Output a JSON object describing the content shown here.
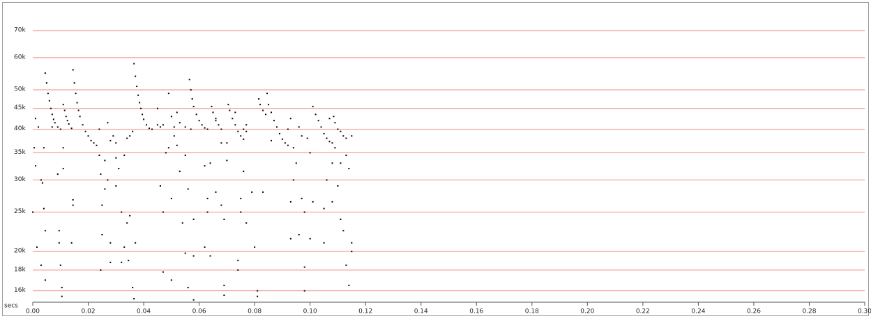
{
  "chart_data": {
    "type": "scatter",
    "xlabel": "secs",
    "color": "#000000",
    "grid_color": "#f08a8a",
    "grid": true,
    "ylog": true,
    "xlim": [
      0,
      0.3
    ],
    "ylim": [
      15000,
      80000
    ],
    "xticks": [
      {
        "value": 0,
        "label": "0.00"
      },
      {
        "value": 0.02,
        "label": "0.02"
      },
      {
        "value": 0.04,
        "label": "0.04"
      },
      {
        "value": 0.06,
        "label": "0.06"
      },
      {
        "value": 0.08,
        "label": "0.08"
      },
      {
        "value": 0.1,
        "label": "0.10"
      },
      {
        "value": 0.12,
        "label": "0.12"
      },
      {
        "value": 0.14,
        "label": "0.14"
      },
      {
        "value": 0.16,
        "label": "0.16"
      },
      {
        "value": 0.18,
        "label": "0.18"
      },
      {
        "value": 0.2,
        "label": "0.20"
      },
      {
        "value": 0.22,
        "label": "0.22"
      },
      {
        "value": 0.24,
        "label": "0.24"
      },
      {
        "value": 0.26,
        "label": "0.26"
      },
      {
        "value": 0.28,
        "label": "0.28"
      },
      {
        "value": 0.3,
        "label": "0.30"
      }
    ],
    "yticks": [
      {
        "value": 16000,
        "label": "16k"
      },
      {
        "value": 18000,
        "label": "18k"
      },
      {
        "value": 20000,
        "label": "20k"
      },
      {
        "value": 25000,
        "label": "25k"
      },
      {
        "value": 30000,
        "label": "30k"
      },
      {
        "value": 35000,
        "label": "35k"
      },
      {
        "value": 40000,
        "label": "40k"
      },
      {
        "value": 45000,
        "label": "45k"
      },
      {
        "value": 50000,
        "label": "50k"
      },
      {
        "value": 60000,
        "label": "60k"
      },
      {
        "value": 70000,
        "label": "70k"
      }
    ],
    "x": [
      0.0045,
      0.005,
      0.0055,
      0.006,
      0.0065,
      0.007,
      0.0075,
      0.008,
      0.009,
      0.01,
      0.011,
      0.0115,
      0.012,
      0.0125,
      0.013,
      0.014,
      0.0145,
      0.015,
      0.0155,
      0.016,
      0.0165,
      0.017,
      0.018,
      0.019,
      0.02,
      0.021,
      0.022,
      0.023,
      0.0365,
      0.037,
      0.0375,
      0.038,
      0.0385,
      0.039,
      0.0395,
      0.04,
      0.041,
      0.042,
      0.043,
      0.0565,
      0.057,
      0.0575,
      0.058,
      0.059,
      0.06,
      0.061,
      0.062,
      0.063,
      0.0645,
      0.065,
      0.066,
      0.067,
      0.068,
      0.0705,
      0.071,
      0.072,
      0.073,
      0.074,
      0.075,
      0.076,
      0.0815,
      0.082,
      0.083,
      0.084,
      0.0845,
      0.085,
      0.086,
      0.087,
      0.088,
      0.089,
      0.09,
      0.091,
      0.092,
      0.101,
      0.102,
      0.103,
      0.104,
      0.105,
      0.106,
      0.107,
      0.108,
      0.1085,
      0.109,
      0.11,
      0.111,
      0.112,
      0.113,
      0.115,
      0.0,
      0.0005,
      0.001,
      0.001,
      0.002,
      0.0015,
      0.003,
      0.003,
      0.0035,
      0.0045,
      0.004,
      0.004,
      0.0045,
      0.007,
      0.009,
      0.0095,
      0.0095,
      0.01,
      0.0105,
      0.0105,
      0.011,
      0.011,
      0.014,
      0.0145,
      0.0145,
      0.024,
      0.024,
      0.0245,
      0.0245,
      0.025,
      0.025,
      0.026,
      0.026,
      0.027,
      0.027,
      0.028,
      0.028,
      0.028,
      0.029,
      0.03,
      0.03,
      0.03,
      0.031,
      0.032,
      0.032,
      0.033,
      0.033,
      0.034,
      0.034,
      0.0345,
      0.035,
      0.035,
      0.036,
      0.036,
      0.0365,
      0.037,
      0.045,
      0.045,
      0.046,
      0.046,
      0.047,
      0.047,
      0.047,
      0.048,
      0.049,
      0.049,
      0.05,
      0.05,
      0.05,
      0.051,
      0.051,
      0.052,
      0.052,
      0.053,
      0.053,
      0.054,
      0.055,
      0.055,
      0.055,
      0.056,
      0.056,
      0.057,
      0.058,
      0.058,
      0.058,
      0.062,
      0.062,
      0.063,
      0.063,
      0.064,
      0.064,
      0.066,
      0.066,
      0.068,
      0.068,
      0.069,
      0.069,
      0.069,
      0.07,
      0.07,
      0.073,
      0.074,
      0.074,
      0.075,
      0.075,
      0.076,
      0.076,
      0.077,
      0.077,
      0.077,
      0.079,
      0.08,
      0.081,
      0.081,
      0.083,
      0.086,
      0.092,
      0.093,
      0.093,
      0.093,
      0.094,
      0.094,
      0.095,
      0.096,
      0.096,
      0.097,
      0.097,
      0.098,
      0.098,
      0.098,
      0.099,
      0.1,
      0.1,
      0.101,
      0.105,
      0.105,
      0.106,
      0.107,
      0.108,
      0.108,
      0.109,
      0.11,
      0.111,
      0.111,
      0.112,
      0.113,
      0.113,
      0.114,
      0.114,
      0.115,
      0.115
    ],
    "values": [
      55000,
      52000,
      49000,
      47000,
      45000,
      43500,
      42300,
      41500,
      40500,
      40000,
      46000,
      44500,
      43000,
      42000,
      41200,
      40200,
      56000,
      52000,
      49000,
      46500,
      44500,
      43000,
      41000,
      39500,
      38500,
      37500,
      37000,
      36500,
      58000,
      54000,
      51000,
      48500,
      46500,
      45000,
      43500,
      42300,
      41000,
      40200,
      40000,
      53000,
      50000,
      47500,
      45500,
      43500,
      42000,
      41000,
      40300,
      40000,
      45500,
      44000,
      42500,
      41000,
      40000,
      46000,
      44500,
      42500,
      41000,
      39500,
      38500,
      37800,
      47500,
      46000,
      44500,
      43500,
      49000,
      46000,
      44000,
      42000,
      40500,
      39000,
      37800,
      37000,
      36500,
      45500,
      43500,
      42000,
      40500,
      39000,
      38000,
      37300,
      37000,
      43000,
      41500,
      40000,
      39500,
      38500,
      38000,
      38500,
      25000,
      36000,
      32500,
      42500,
      40500,
      20500,
      18500,
      30000,
      29500,
      17000,
      25500,
      36000,
      22500,
      40500,
      31000,
      22500,
      21000,
      18500,
      16300,
      15500,
      32000,
      36000,
      21000,
      26000,
      26800,
      40000,
      34500,
      31000,
      18000,
      26000,
      22000,
      28500,
      33500,
      41500,
      30000,
      37500,
      21000,
      18800,
      38500,
      37000,
      34000,
      29000,
      32000,
      25000,
      18800,
      20500,
      34500,
      38000,
      23500,
      19000,
      24500,
      38500,
      39500,
      16300,
      15300,
      21000,
      41000,
      45000,
      40500,
      29000,
      41000,
      25000,
      17800,
      35000,
      49000,
      36000,
      43000,
      27000,
      17000,
      40500,
      38500,
      44000,
      36500,
      41500,
      31500,
      23500,
      40500,
      34500,
      19800,
      16300,
      28500,
      40000,
      24000,
      19500,
      15200,
      32500,
      20500,
      27000,
      25000,
      33000,
      19500,
      42000,
      28000,
      37000,
      26000,
      24000,
      16500,
      15600,
      37000,
      33500,
      44000,
      19000,
      18000,
      27000,
      25000,
      40000,
      31500,
      41000,
      39500,
      23500,
      28000,
      20500,
      16000,
      15500,
      28000,
      37500,
      40000,
      42500,
      26500,
      21500,
      30000,
      36000,
      33000,
      22000,
      40500,
      38500,
      27000,
      25000,
      16000,
      18300,
      38000,
      35000,
      21500,
      26500,
      25500,
      21000,
      30000,
      42500,
      26500,
      33000,
      36000,
      29000,
      33000,
      24000,
      22500,
      18500,
      34500,
      16500,
      32000,
      21000,
      20000
    ]
  }
}
